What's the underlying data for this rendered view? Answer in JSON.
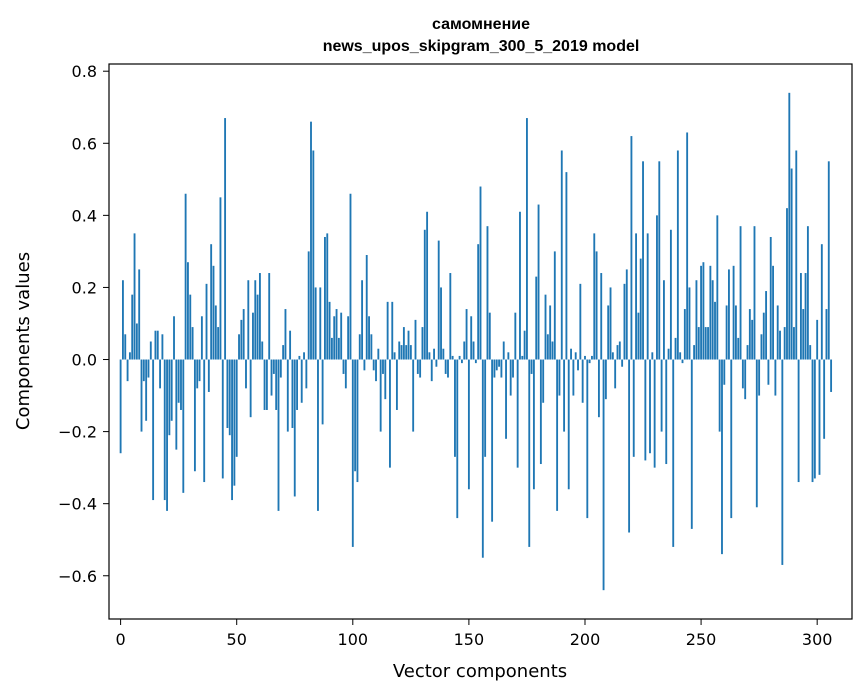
{
  "chart_data": {
    "type": "bar",
    "title_line1": "самомнение",
    "title_line2": "news_upos_skipgram_300_5_2019 model",
    "xlabel": "Vector components",
    "ylabel": "Components values",
    "xlim": [
      -5,
      315
    ],
    "ylim": [
      -0.72,
      0.82
    ],
    "x_ticks": [
      0,
      50,
      100,
      150,
      200,
      250,
      300
    ],
    "x_tick_labels": [
      "0",
      "50",
      "100",
      "150",
      "200",
      "250",
      "300"
    ],
    "y_ticks": [
      -0.6,
      -0.4,
      -0.2,
      0.0,
      0.2,
      0.4,
      0.6,
      0.8
    ],
    "y_tick_labels": [
      "−0.6",
      "−0.4",
      "−0.2",
      "0.0",
      "0.2",
      "0.4",
      "0.6",
      "0.8"
    ],
    "bar_color": "#1f77b4",
    "series_name": "components",
    "values": [
      -0.26,
      0.22,
      0.07,
      -0.06,
      0.02,
      0.18,
      0.35,
      0.1,
      0.25,
      -0.2,
      -0.06,
      -0.17,
      -0.05,
      0.05,
      -0.39,
      0.08,
      0.08,
      -0.08,
      0.07,
      -0.39,
      -0.42,
      -0.21,
      -0.17,
      0.12,
      -0.25,
      -0.12,
      -0.14,
      -0.37,
      0.46,
      0.27,
      0.18,
      0.09,
      -0.31,
      -0.08,
      -0.06,
      0.12,
      -0.34,
      0.21,
      -0.09,
      0.32,
      0.26,
      0.15,
      0.09,
      0.45,
      -0.33,
      0.67,
      -0.19,
      -0.21,
      -0.39,
      -0.35,
      -0.27,
      0.07,
      0.11,
      0.14,
      -0.08,
      0.22,
      -0.16,
      0.13,
      0.22,
      0.18,
      0.24,
      0.05,
      -0.14,
      -0.14,
      0.24,
      -0.1,
      -0.04,
      -0.14,
      -0.42,
      -0.05,
      0.04,
      0.14,
      -0.2,
      0.08,
      -0.19,
      -0.38,
      -0.14,
      0.01,
      -0.12,
      0.02,
      -0.08,
      0.3,
      0.66,
      0.58,
      0.2,
      -0.42,
      0.2,
      -0.18,
      0.34,
      0.35,
      0.16,
      0.06,
      0.12,
      0.14,
      0.06,
      0.13,
      -0.04,
      -0.08,
      0.12,
      0.46,
      -0.52,
      -0.31,
      -0.34,
      0.07,
      0.22,
      -0.03,
      0.29,
      0.12,
      0.07,
      -0.03,
      -0.06,
      0.03,
      -0.2,
      -0.04,
      -0.11,
      0.16,
      -0.3,
      0.16,
      0.02,
      -0.14,
      0.05,
      0.04,
      0.09,
      0.04,
      0.08,
      0.04,
      -0.2,
      0.11,
      -0.04,
      -0.05,
      0.09,
      0.36,
      0.41,
      0.02,
      -0.06,
      0.03,
      -0.02,
      0.33,
      0.2,
      0.03,
      -0.04,
      -0.05,
      0.24,
      0.01,
      -0.27,
      -0.44,
      0.01,
      -0.01,
      0.05,
      0.14,
      -0.36,
      0.12,
      0.05,
      -0.01,
      0.32,
      0.48,
      -0.55,
      -0.27,
      0.37,
      0.13,
      -0.45,
      -0.05,
      -0.03,
      -0.02,
      -0.05,
      0.05,
      -0.22,
      0.02,
      -0.1,
      -0.05,
      0.13,
      -0.3,
      0.41,
      0.01,
      0.08,
      0.67,
      -0.52,
      -0.04,
      -0.36,
      0.23,
      0.43,
      -0.29,
      -0.12,
      0.18,
      0.07,
      0.15,
      0.05,
      0.3,
      -0.42,
      -0.1,
      0.58,
      -0.2,
      0.52,
      -0.36,
      0.03,
      -0.1,
      0.02,
      -0.03,
      0.21,
      -0.12,
      0.01,
      -0.44,
      -0.01,
      0.01,
      0.35,
      0.3,
      -0.16,
      0.24,
      -0.64,
      -0.11,
      0.15,
      0.2,
      0.02,
      -0.08,
      0.04,
      0.05,
      -0.02,
      0.21,
      0.25,
      -0.48,
      0.62,
      -0.27,
      0.35,
      0.13,
      0.28,
      0.55,
      -0.28,
      0.35,
      -0.26,
      0.02,
      -0.3,
      0.4,
      0.55,
      -0.2,
      0.22,
      -0.29,
      0.03,
      0.36,
      -0.52,
      0.06,
      0.58,
      0.02,
      -0.01,
      0.14,
      0.63,
      0.2,
      -0.47,
      0.04,
      0.22,
      0.09,
      0.26,
      0.27,
      0.09,
      0.09,
      0.26,
      0.22,
      0.16,
      0.4,
      -0.2,
      -0.54,
      -0.07,
      0.15,
      0.25,
      -0.44,
      0.26,
      0.15,
      0.06,
      0.37,
      -0.08,
      -0.11,
      0.04,
      0.14,
      0.11,
      0.37,
      -0.41,
      -0.1,
      0.07,
      0.13,
      0.19,
      -0.07,
      0.34,
      0.26,
      -0.1,
      0.15,
      0.08,
      -0.57,
      0.09,
      0.42,
      0.74,
      0.53,
      0.09,
      0.58,
      -0.34,
      0.24,
      0.14,
      0.24,
      0.37,
      0.04,
      -0.34,
      -0.33,
      0.11,
      -0.32,
      0.32,
      -0.22,
      0.14,
      0.55,
      -0.09
    ]
  }
}
